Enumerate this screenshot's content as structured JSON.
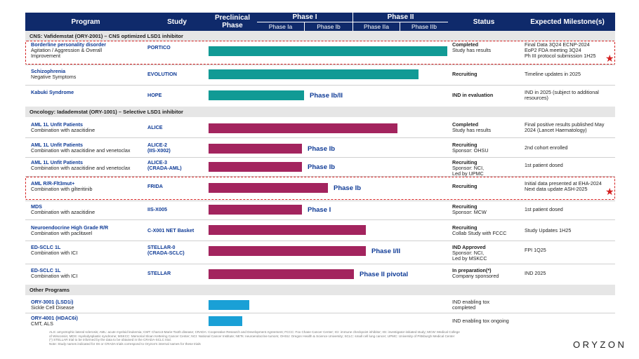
{
  "header": {
    "program": "Program",
    "study": "Study",
    "preclinical": "Preclinical Phase",
    "phase1": "Phase I",
    "phase1a": "Phase Ia",
    "phase1b": "Phase Ib",
    "phase2": "Phase II",
    "phase2a": "Phase IIa",
    "phase2b": "Phase IIb",
    "status": "Status",
    "milestones": "Expected Milestone(s)"
  },
  "sections": {
    "cns": "CNS: Vafidemstat (ORY-2001) – CNS optimized LSD1 inhibitor",
    "oncology": "Oncology: Iadademstat (ORY-1001) – Selective LSD1 inhibitor",
    "other": "Other Programs"
  },
  "rows": [
    {
      "title": "Borderline personality disorder",
      "sub": "Agitation / Aggression & Overall",
      "sub2": "Improvement",
      "study": "PORTICO",
      "study2": "",
      "bar_label": "",
      "progress_pct": 100,
      "color": "teal",
      "status_bold": "Completed",
      "status_lines": [
        "Study has results"
      ],
      "milestones": [
        "Final Data 3Q24 ECNP-2024",
        "EoP2 FDA meeting 3Q24",
        "Ph III protocol submission 1H25"
      ]
    },
    {
      "title": "Schizophrenia",
      "sub": "Negative Symptoms",
      "sub2": "",
      "study": "EVOLUTION",
      "study2": "",
      "bar_label": "",
      "progress_pct": 88,
      "color": "teal",
      "status_bold": "Recruiting",
      "status_lines": [],
      "milestones": [
        "Timeline updates in 2025"
      ]
    },
    {
      "title": "Kabuki Syndrome",
      "sub": "",
      "sub2": "",
      "study": "HOPE",
      "study2": "",
      "bar_label": "Phase Ib/II",
      "progress_pct": 40,
      "color": "teal",
      "status_bold": "IND in evaluation",
      "status_lines": [],
      "milestones": [
        "IND in 2025 (subject to additional",
        "resources)"
      ]
    },
    {
      "title": "AML 1L Unfit Patients",
      "sub": "Combination with azacitidine",
      "sub2": "",
      "study": "ALICE",
      "study2": "",
      "bar_label": "",
      "progress_pct": 79,
      "color": "plum",
      "status_bold": "Completed",
      "status_lines": [
        "Study has results"
      ],
      "milestones": [
        "Final positive results published May",
        "2024 (Lancet Haematology)"
      ]
    },
    {
      "title": "AML 1L Unfit Patients",
      "sub": "Combination with azacitidine and venetoclax",
      "sub2": "",
      "study": "ALICE-2",
      "study2": "(IIS-X002)",
      "bar_label": "Phase Ib",
      "progress_pct": 39,
      "color": "plum",
      "status_bold": "Recruiting",
      "status_lines": [
        "Sponsor: OHSU"
      ],
      "milestones": [
        "2nd cohort enrolled"
      ]
    },
    {
      "title": "AML 1L Unfit Patients",
      "sub": "Combination with azacitidine and venetoclax",
      "sub2": "",
      "study": "ALICE-3",
      "study2": "(CRADA-AML)",
      "bar_label": "Phase Ib",
      "progress_pct": 39,
      "color": "plum",
      "status_bold": "Recruiting",
      "status_lines": [
        "Sponsor: NCI,",
        "Led by UPMC"
      ],
      "milestones": [
        "1st patient dosed"
      ]
    },
    {
      "title": "AML R/R-Flt3mut+",
      "sub": "Combination with gilteritinib",
      "sub2": "",
      "study": "FRIDA",
      "study2": "",
      "bar_label": "Phase Ib",
      "progress_pct": 50,
      "color": "plum",
      "status_bold": "Recruiting",
      "status_lines": [],
      "milestones": [
        "Initial data presented at EHA-2024",
        "Next data update ASH-2025"
      ]
    },
    {
      "title": "MDS",
      "sub": "Combination with azacitidine",
      "sub2": "",
      "study": "IIS-X005",
      "study2": "",
      "bar_label": "Phase I",
      "progress_pct": 39,
      "color": "plum",
      "status_bold": "Recruiting",
      "status_lines": [
        "Sponsor: MCW"
      ],
      "milestones": [
        "1st patient dosed"
      ]
    },
    {
      "title": "Neuroendocrine High Grade R/R",
      "sub": "Combination with paclitaxel",
      "sub2": "",
      "study": "C-X001 NET Basket",
      "study2": "",
      "bar_label": "",
      "progress_pct": 66,
      "color": "plum",
      "status_bold": "Recruiting",
      "status_lines": [
        "Collab Study with FCCC"
      ],
      "milestones": [
        "Study Updates 1H25"
      ]
    },
    {
      "title": "ED-SCLC 1L",
      "sub": "Combination with ICI",
      "sub2": "",
      "study": "STELLAR-0",
      "study2": "(CRADA-SCLC)",
      "bar_label": "Phase I/II",
      "progress_pct": 66,
      "color": "plum",
      "status_bold": "IND Approved",
      "status_lines": [
        "Sponsor: NCI,",
        "Led by MSKCC"
      ],
      "milestones": [
        "FPI 1Q25"
      ]
    },
    {
      "title": "ED-SCLC 1L",
      "sub": "Combination with ICI",
      "sub2": "",
      "study": "STELLAR",
      "study2": "",
      "bar_label": "Phase  II pivotal",
      "progress_pct": 61,
      "color": "plum",
      "status_bold": "In preparation(*)",
      "status_lines": [
        "Company sponsored"
      ],
      "milestones": [
        "IND 2025"
      ]
    },
    {
      "title": "ORY-3001 (LSD1i)",
      "sub": "Sickle Cell Disease",
      "sub2": "",
      "study": "",
      "study2": "",
      "bar_label": "",
      "progress_pct": 17,
      "color": "blue",
      "status_bold": "",
      "status_lines": [
        "IND enabling tox",
        "completed"
      ],
      "milestones": []
    },
    {
      "title": "ORY-4001 (HDAC6i)",
      "sub": "CMT, ALS",
      "sub2": "",
      "study": "",
      "study2": "",
      "bar_label": "",
      "progress_pct": 14,
      "color": "blue",
      "status_bold": "",
      "status_lines": [
        "IND enabling tox ongoing"
      ],
      "milestones": []
    }
  ],
  "footnote": {
    "line1": "ALS: amyotrophic lateral sclerosis; AML: acute myeloid leukemia; CMT: Charcot-Marie-Tooth disease; CRADA: Cooperative Research and Development Agreement; FCCC: Fox Chase Cancer Center; ICI: immune checkpoint inhibitor; IIS: investigator-initiated study; MCW: Medical College",
    "line2": "of Wisconsin; MDS: myelodysplastic syndrome; MSKCC: Memorial Sloan Kettering Cancer Center; NCI: National Cancer Institute; NETs: neuroendocrine tumors; OHSU: Oregon Health & Science University; SCLC: small cell lung cancer; UPMC: University of Pittsburgh Medical Center",
    "line3": "(*) STELLAR trial to be informed by the data to be obtained in the CRADA-SCLC trial.",
    "line4": "Note: Study names indicated for IIS or CRADA trials correspond to Oryzon's internal names for these trials"
  },
  "logo": "ORYZON",
  "colors": {
    "header": "#0f2a6b",
    "teal": "#119a95",
    "plum": "#a3245e",
    "blue": "#1aa0d6",
    "highlight": "#d42020"
  },
  "icons": {
    "highlight_star": "star-icon"
  }
}
